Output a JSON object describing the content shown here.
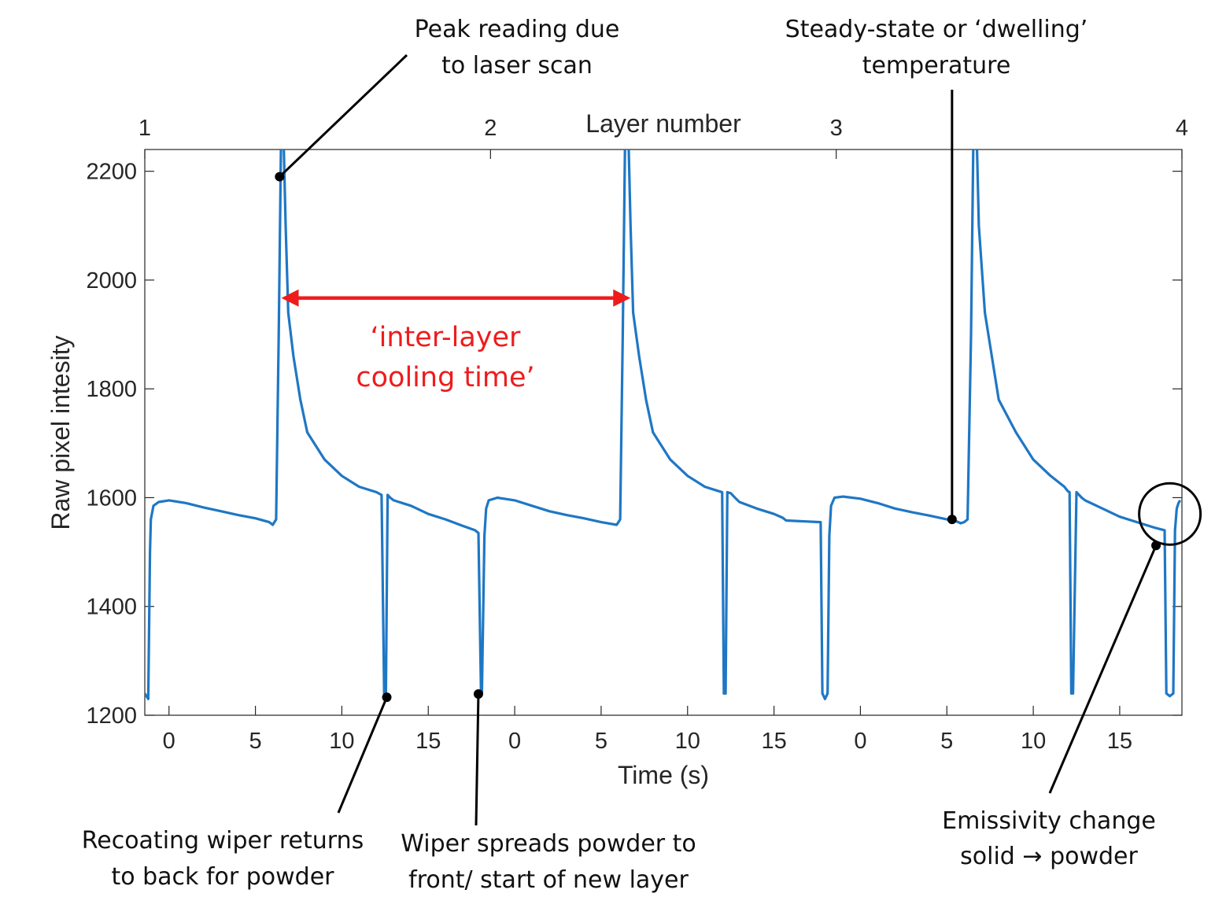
{
  "chart_data": {
    "type": "line",
    "xlabel": "Time (s)",
    "ylabel": "Raw pixel intesity",
    "top_axis_label": "Layer number",
    "top_ticks": [
      "1",
      "2",
      "3",
      "4"
    ],
    "x_tick_labels": [
      "0",
      "5",
      "10",
      "15",
      "0",
      "5",
      "10",
      "15",
      "0",
      "5",
      "10",
      "15"
    ],
    "y_ticks": [
      1200,
      1400,
      1600,
      1800,
      2000,
      2200
    ],
    "xlim": [
      -1.4,
      58.6
    ],
    "ylim": [
      1200,
      2240
    ],
    "line_color": "#1f77c4",
    "annotation_color": "#ee1c1c",
    "series": [
      {
        "x": [
          -1.4,
          -1.2,
          -1.1,
          -1.05,
          -0.9,
          -0.6,
          0,
          1,
          2,
          3,
          4,
          5,
          5.8,
          6.0,
          6.2,
          6.35,
          6.5,
          6.6,
          6.75,
          6.9,
          7.2,
          7.6,
          8,
          9,
          10,
          11,
          12,
          12.3,
          12.45,
          12.55,
          12.65,
          12.8,
          13,
          14,
          15,
          16,
          17,
          17.7,
          17.9,
          18.05,
          18.1,
          18.25,
          18.35,
          18.5,
          19,
          20,
          21,
          22,
          23,
          24,
          25,
          25.9,
          26.1,
          26.25,
          26.4,
          26.55,
          26.7,
          26.85,
          27.2,
          27.6,
          28,
          29,
          30,
          31,
          31.8,
          32.0,
          32.1,
          32.2,
          32.3,
          32.5,
          32.8,
          33,
          34,
          35,
          35.5,
          35.7,
          37.7,
          37.8,
          37.95,
          38.1,
          38.2,
          38.3,
          38.5,
          39,
          40,
          41,
          42,
          43,
          44,
          45,
          45.6,
          45.8,
          46.0,
          46.2,
          46.4,
          46.55,
          46.7,
          46.85,
          47.2,
          47.6,
          48,
          49,
          50,
          51,
          51.8,
          52.0,
          52.1,
          52.2,
          52.3,
          52.5,
          52.8,
          53,
          54,
          55,
          56,
          57,
          57.6,
          57.7,
          57.9,
          58.1,
          58.2,
          58.3,
          58.4,
          58.5
        ],
        "y": [
          1240,
          1230,
          1500,
          1560,
          1585,
          1592,
          1595,
          1590,
          1582,
          1575,
          1568,
          1562,
          1555,
          1550,
          1560,
          1900,
          2300,
          2300,
          2100,
          1940,
          1860,
          1780,
          1720,
          1670,
          1640,
          1620,
          1610,
          1605,
          1240,
          1240,
          1605,
          1600,
          1595,
          1585,
          1570,
          1560,
          1548,
          1540,
          1535,
          1240,
          1240,
          1530,
          1580,
          1595,
          1600,
          1595,
          1585,
          1575,
          1568,
          1562,
          1555,
          1550,
          1560,
          1900,
          2300,
          2300,
          2100,
          1940,
          1860,
          1780,
          1720,
          1670,
          1640,
          1620,
          1612,
          1610,
          1240,
          1240,
          1610,
          1608,
          1598,
          1592,
          1580,
          1570,
          1563,
          1558,
          1555,
          1240,
          1230,
          1240,
          1530,
          1585,
          1600,
          1602,
          1598,
          1590,
          1580,
          1573,
          1567,
          1560,
          1556,
          1553,
          1555,
          1560,
          1900,
          2300,
          2300,
          2100,
          1940,
          1860,
          1780,
          1720,
          1670,
          1640,
          1620,
          1612,
          1610,
          1240,
          1240,
          1610,
          1600,
          1595,
          1580,
          1565,
          1555,
          1545,
          1540,
          1240,
          1235,
          1240,
          1540,
          1580,
          1590,
          1595
        ]
      }
    ],
    "annotations": {
      "peak": [
        "Peak reading due",
        "to laser scan"
      ],
      "steady": [
        "Steady-state or ‘dwelling’",
        "temperature"
      ],
      "interlayer": [
        "‘inter-layer",
        "cooling time’"
      ],
      "wiper_return": [
        "Recoating wiper returns",
        "to back for powder"
      ],
      "wiper_spread": [
        "Wiper spreads powder to",
        "front/ start of new layer"
      ],
      "emissivity": [
        "Emissivity change",
        "solid → powder"
      ]
    },
    "markers": {
      "peak": [
        6.4,
        2190
      ],
      "steady": [
        45.3,
        1560
      ],
      "wiper_return": [
        12.6,
        1233
      ],
      "wiper_spread": [
        17.9,
        1239
      ],
      "emissivity": [
        57.1,
        1512
      ],
      "interlayer_start": [
        6.5,
        1967
      ],
      "interlayer_end": [
        26.7,
        1967
      ],
      "circle_center": [
        57.9,
        1570
      ]
    }
  }
}
